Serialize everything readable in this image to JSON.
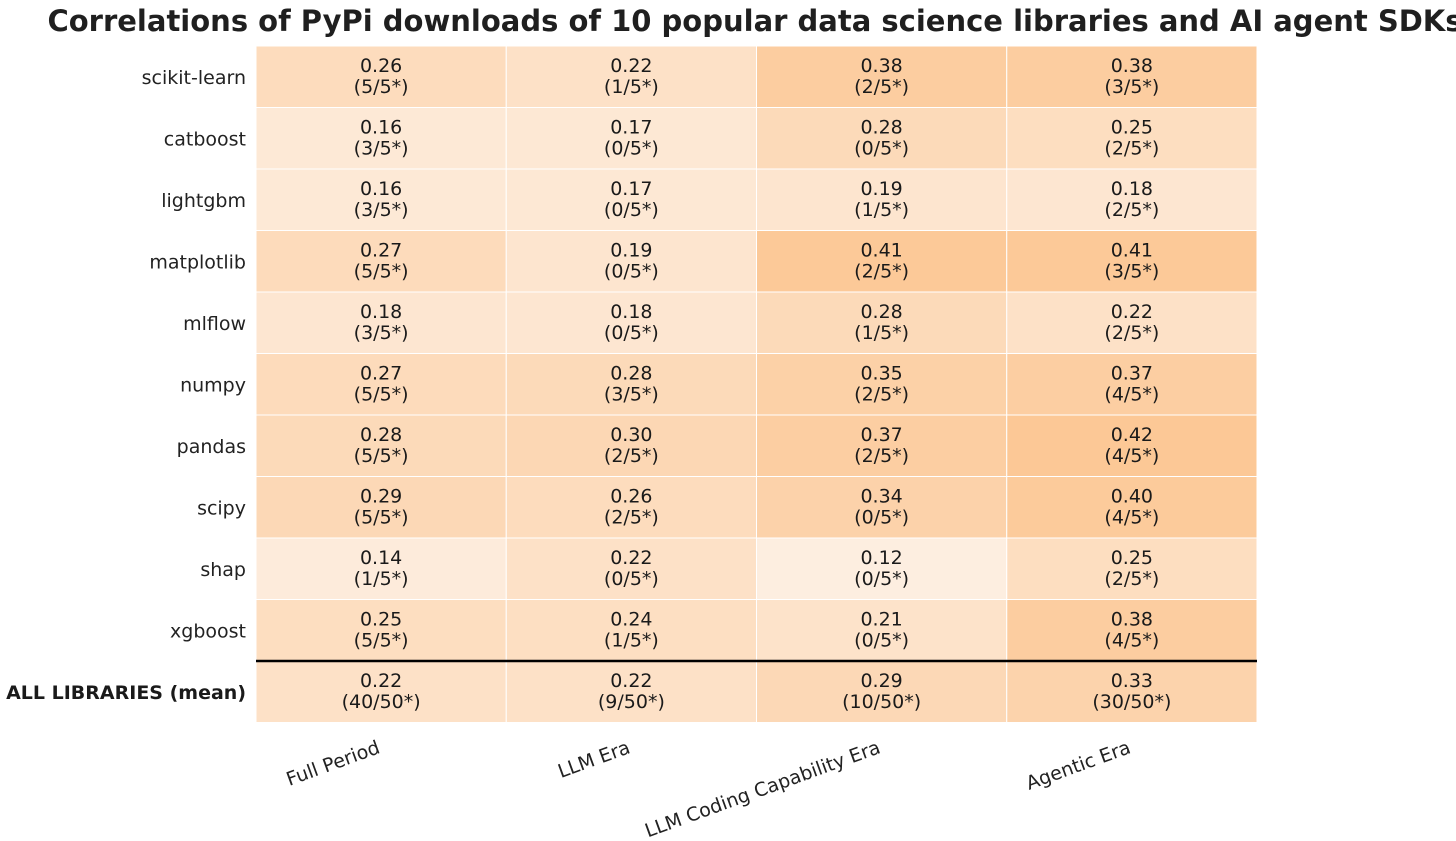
{
  "chart_data": {
    "type": "heatmap",
    "title": "Correlations of PyPi downloads of 10 popular data science libraries and AI agent SDKs",
    "columns": [
      "Full Period",
      "LLM Era",
      "LLM Coding Capability Era",
      "Agentic Era"
    ],
    "rows": [
      {
        "label": "scikit-learn",
        "values": [
          0.26,
          0.22,
          0.38,
          0.38
        ],
        "sig": [
          "(5/5*)",
          "(1/5*)",
          "(2/5*)",
          "(3/5*)"
        ]
      },
      {
        "label": "catboost",
        "values": [
          0.16,
          0.17,
          0.28,
          0.25
        ],
        "sig": [
          "(3/5*)",
          "(0/5*)",
          "(0/5*)",
          "(2/5*)"
        ]
      },
      {
        "label": "lightgbm",
        "values": [
          0.16,
          0.17,
          0.19,
          0.18
        ],
        "sig": [
          "(3/5*)",
          "(0/5*)",
          "(1/5*)",
          "(2/5*)"
        ]
      },
      {
        "label": "matplotlib",
        "values": [
          0.27,
          0.19,
          0.41,
          0.41
        ],
        "sig": [
          "(5/5*)",
          "(0/5*)",
          "(2/5*)",
          "(3/5*)"
        ]
      },
      {
        "label": "mlflow",
        "values": [
          0.18,
          0.18,
          0.28,
          0.22
        ],
        "sig": [
          "(3/5*)",
          "(0/5*)",
          "(1/5*)",
          "(2/5*)"
        ]
      },
      {
        "label": "numpy",
        "values": [
          0.27,
          0.28,
          0.35,
          0.37
        ],
        "sig": [
          "(5/5*)",
          "(3/5*)",
          "(2/5*)",
          "(4/5*)"
        ]
      },
      {
        "label": "pandas",
        "values": [
          0.28,
          0.3,
          0.37,
          0.42
        ],
        "sig": [
          "(5/5*)",
          "(2/5*)",
          "(2/5*)",
          "(4/5*)"
        ]
      },
      {
        "label": "scipy",
        "values": [
          0.29,
          0.26,
          0.34,
          0.4
        ],
        "sig": [
          "(5/5*)",
          "(2/5*)",
          "(0/5*)",
          "(4/5*)"
        ]
      },
      {
        "label": "shap",
        "values": [
          0.14,
          0.22,
          0.12,
          0.25
        ],
        "sig": [
          "(1/5*)",
          "(0/5*)",
          "(0/5*)",
          "(2/5*)"
        ]
      },
      {
        "label": "xgboost",
        "values": [
          0.25,
          0.24,
          0.21,
          0.38
        ],
        "sig": [
          "(5/5*)",
          "(1/5*)",
          "(0/5*)",
          "(4/5*)"
        ]
      }
    ],
    "summary_row": {
      "label": "ALL LIBRARIES (mean)",
      "values": [
        0.22,
        0.22,
        0.29,
        0.33
      ],
      "sig": [
        "(40/50*)",
        "(9/50*)",
        "(10/50*)",
        "(30/50*)"
      ]
    },
    "color_range": [
      0.12,
      0.42
    ],
    "colors": {
      "low": "#fdeee0",
      "high": "#fcc896",
      "separator": "#000000"
    },
    "grid": false,
    "legend": "none"
  }
}
